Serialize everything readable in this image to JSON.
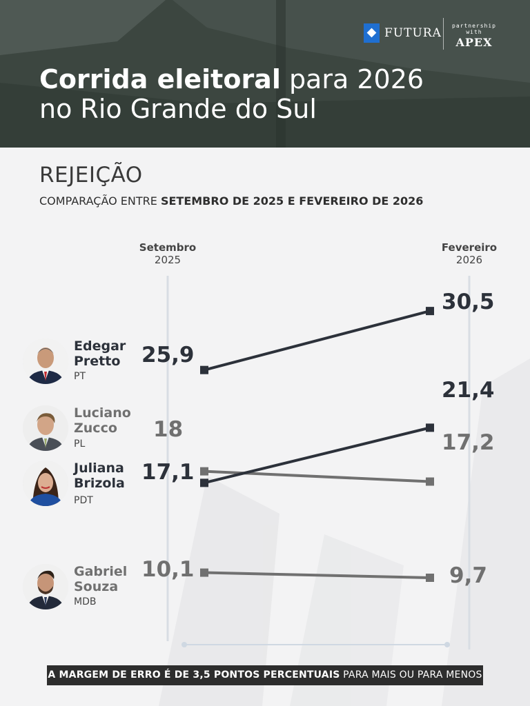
{
  "header": {
    "brand": "FUTURA",
    "partner_prefix": "partnership with",
    "partner": "APEX",
    "title_bold": "Corrida eleitoral",
    "title_rest": " para 2026",
    "title_line2": "no Rio Grande do Sul"
  },
  "subtitle": {
    "main": "REJEIÇÃO",
    "prefix": "COMPARAÇÃO ENTRE ",
    "bold": "SETEMBRO DE 2025 E FEVEREIRO DE 2026"
  },
  "columns": {
    "left": {
      "month": "Setembro",
      "year": "2025"
    },
    "right": {
      "month": "Fevereiro",
      "year": "2026"
    }
  },
  "chart_data": {
    "type": "line",
    "x": [
      "Setembro 2025",
      "Fevereiro 2026"
    ],
    "series": [
      {
        "name": "Edegar Pretto",
        "values": [
          25.9,
          30.5
        ],
        "labels": [
          "25,9",
          "30,5"
        ]
      },
      {
        "name": "Luciano Zucco",
        "values": [
          18,
          17.2
        ],
        "labels": [
          "18",
          "17,2"
        ]
      },
      {
        "name": "Juliana Brizola",
        "values": [
          17.1,
          21.4
        ],
        "labels": [
          "17,1",
          "21,4"
        ]
      },
      {
        "name": "Gabriel Souza",
        "values": [
          10.1,
          9.7
        ],
        "labels": [
          "10,1",
          "9,7"
        ]
      }
    ]
  },
  "candidates": [
    {
      "first": "Edegar",
      "last": "Pretto",
      "party": "PT"
    },
    {
      "first": "Luciano",
      "last": "Zucco",
      "party": "PL"
    },
    {
      "first": "Juliana",
      "last": "Brizola",
      "party": "PDT"
    },
    {
      "first": "Gabriel",
      "last": "Souza",
      "party": "MDB"
    }
  ],
  "colors": {
    "dark": "#2c313a",
    "grey": "#707070",
    "footer_bg": "#2d2d2d"
  },
  "footer": {
    "bold": "A MARGEM DE ERRO É DE 3,5 PONTOS PERCENTUAIS",
    "rest": " PARA MAIS OU PARA MENOS"
  }
}
